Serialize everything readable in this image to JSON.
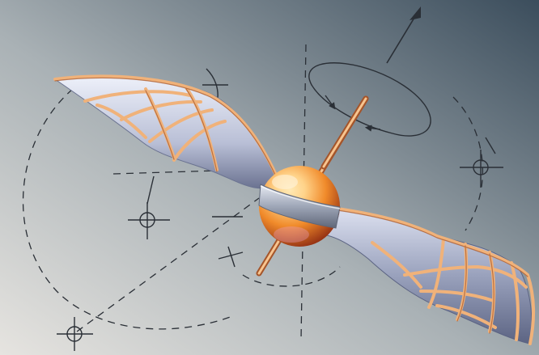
{
  "scene": {
    "subject": "ornithopter-wings-illustration",
    "colors": {
      "bg_light": "#e6e4e0",
      "bg_mid": "#a9b1b5",
      "bg_dark": "#3b4d5c",
      "membrane_light": "#eef1fa",
      "membrane_dark": "#6b7391",
      "rib": "#f0b27a",
      "rib_dark": "#a5552a",
      "sphere_light": "#ffd38a",
      "sphere_mid": "#f08a2a",
      "sphere_dark": "#8f2c12",
      "band": "#9fa7b8",
      "construction_line": "#2a2f36"
    },
    "icons": [
      "rotation-arrow-icon",
      "crosshair-icon",
      "direction-arrow-icon"
    ]
  }
}
